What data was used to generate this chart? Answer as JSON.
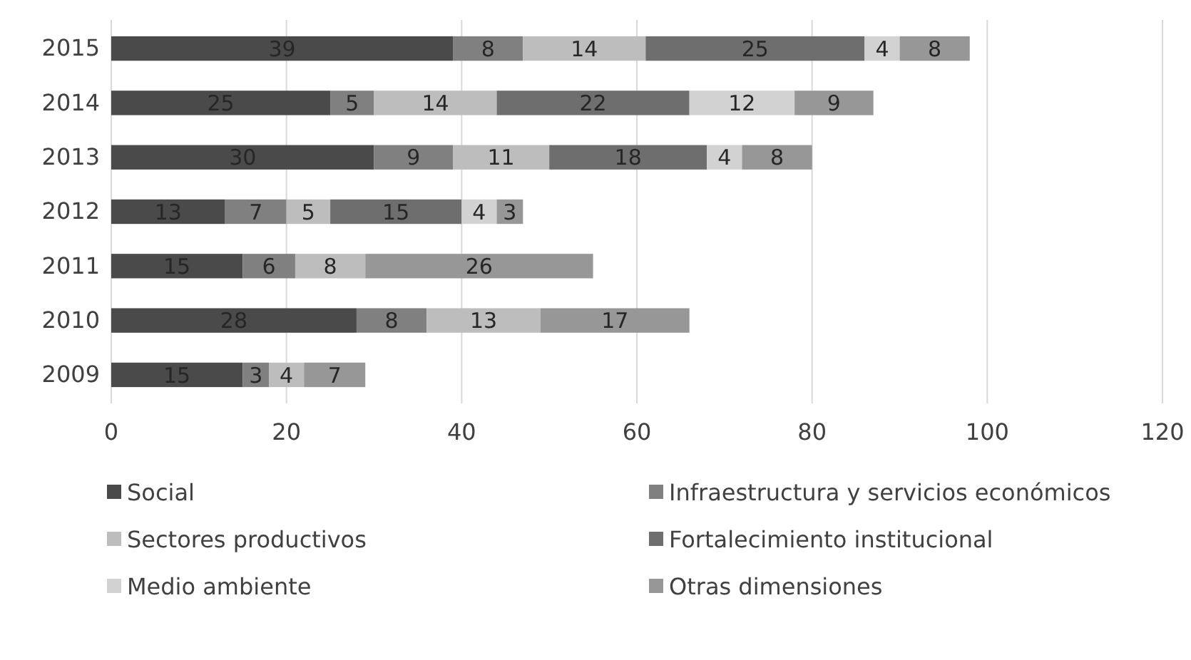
{
  "chart_data": {
    "type": "bar",
    "orientation": "horizontal",
    "stacked": true,
    "categories": [
      "2015",
      "2014",
      "2013",
      "2012",
      "2011",
      "2010",
      "2009"
    ],
    "series": [
      {
        "name": "Social",
        "color": "#4a4a4a",
        "values": [
          39,
          25,
          30,
          13,
          15,
          28,
          15
        ]
      },
      {
        "name": "Infraestructura y servicios económicos",
        "color": "#808080",
        "values": [
          8,
          5,
          9,
          7,
          6,
          8,
          3
        ]
      },
      {
        "name": "Sectores productivos",
        "color": "#bdbdbd",
        "values": [
          14,
          14,
          11,
          5,
          8,
          13,
          4
        ]
      },
      {
        "name": "Fortalecimiento institucional",
        "color": "#6e6e6e",
        "values": [
          25,
          22,
          18,
          15,
          null,
          null,
          null
        ]
      },
      {
        "name": "Medio ambiente",
        "color": "#d2d2d2",
        "values": [
          4,
          12,
          4,
          4,
          null,
          null,
          null
        ]
      },
      {
        "name": "Otras dimensiones",
        "color": "#979797",
        "values": [
          8,
          9,
          8,
          3,
          26,
          17,
          7
        ]
      }
    ],
    "xlim": [
      0,
      120
    ],
    "xticks": [
      0,
      20,
      40,
      60,
      80,
      100,
      120
    ],
    "grid": "x",
    "legend": "bottom",
    "data_labels": true
  }
}
